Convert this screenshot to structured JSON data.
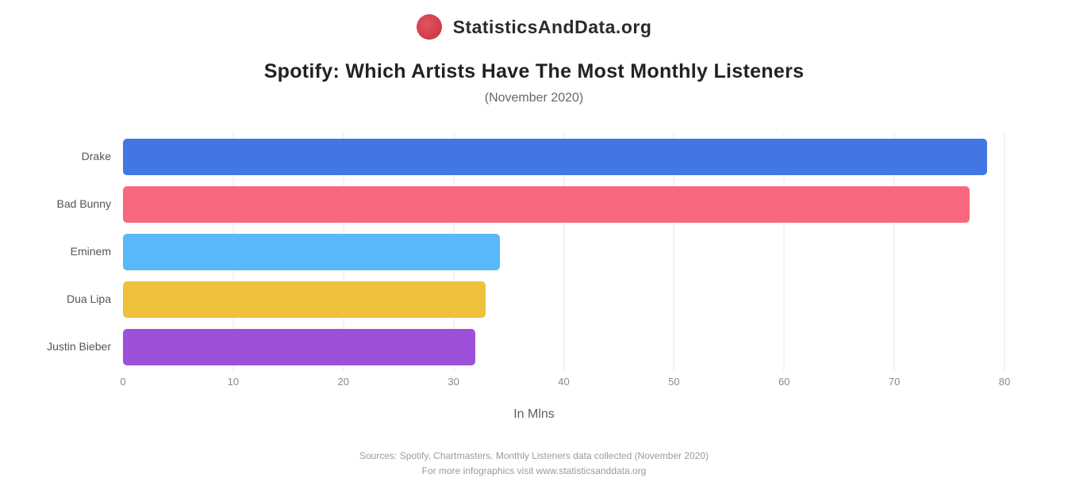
{
  "logo": {
    "icon": "red-circle-logo",
    "text": "StatisticsAndData.org"
  },
  "header": {
    "title": "Spotify: Which Artists Have The Most Monthly Listeners",
    "subtitle": "(November 2020)"
  },
  "chart_data": {
    "type": "bar",
    "orientation": "horizontal",
    "title": "Spotify: Which Artists Have The Most Monthly Listeners",
    "subtitle": "(November 2020)",
    "categories": [
      "Drake",
      "Bad Bunny",
      "Eminem",
      "Dua Lipa",
      "Justin Bieber"
    ],
    "values": [
      78.4,
      76.8,
      34.2,
      32.9,
      32.0
    ],
    "bar_colors": [
      "#4176e3",
      "#f9677f",
      "#58b8f8",
      "#edc13c",
      "#9d50d8"
    ],
    "xlabel": "In Mlns",
    "xlim": [
      0,
      80
    ],
    "xticks": [
      0,
      10,
      20,
      30,
      40,
      50,
      60,
      70,
      80
    ],
    "grid": true,
    "legend": false,
    "ylabel": ""
  },
  "footer": {
    "line1": "Sources: Spotify, Chartmasters. Monthly Listeners data collected (November 2020)",
    "line2": "For more infographics visit www.statisticsanddata.org"
  },
  "colors": {
    "logo_red": "#cf3a47",
    "title_text": "#222222",
    "subtitle_text": "#666666",
    "gridline": "#f3f3f3",
    "tick_text": "#8a8a8a",
    "footer_text": "#9b9b9b"
  }
}
